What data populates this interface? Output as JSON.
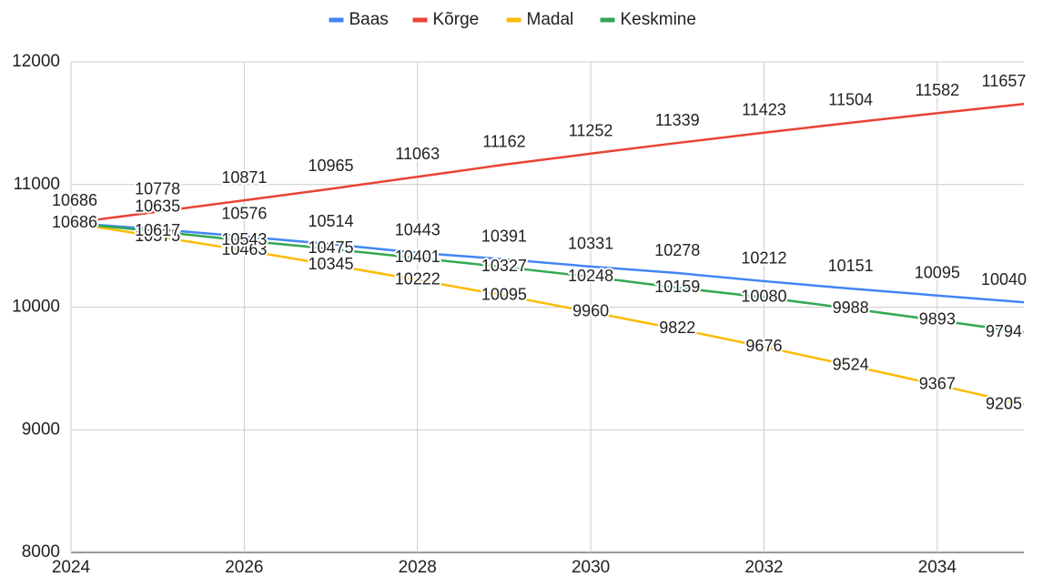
{
  "chart_data": {
    "type": "line",
    "x": [
      2024,
      2025,
      2026,
      2027,
      2028,
      2029,
      2030,
      2031,
      2032,
      2033,
      2034,
      2035
    ],
    "series": [
      {
        "name": "Baas",
        "color": "#4285f4",
        "values": [
          10686,
          10635,
          10576,
          10514,
          10443,
          10391,
          10331,
          10278,
          10212,
          10151,
          10095,
          10040
        ]
      },
      {
        "name": "Kõrge",
        "color": "#ea4335",
        "values": [
          10686,
          10778,
          10871,
          10965,
          11063,
          11162,
          11252,
          11339,
          11423,
          11504,
          11582,
          11657
        ]
      },
      {
        "name": "Madal",
        "color": "#fbbc04",
        "values": [
          10686,
          10575,
          10463,
          10345,
          10222,
          10095,
          9960,
          9822,
          9676,
          9524,
          9367,
          9205
        ]
      },
      {
        "name": "Keskmine",
        "color": "#34a853",
        "values": [
          10686,
          10617,
          10543,
          10475,
          10401,
          10327,
          10248,
          10159,
          10080,
          9988,
          9893,
          9794
        ]
      }
    ],
    "xlim": [
      2024,
      2035
    ],
    "xticks": [
      2024,
      2026,
      2028,
      2030,
      2032,
      2034
    ],
    "ylim": [
      8000,
      12000
    ],
    "yticks": [
      8000,
      9000,
      10000,
      11000,
      12000
    ],
    "grid": true,
    "legend": "top"
  }
}
